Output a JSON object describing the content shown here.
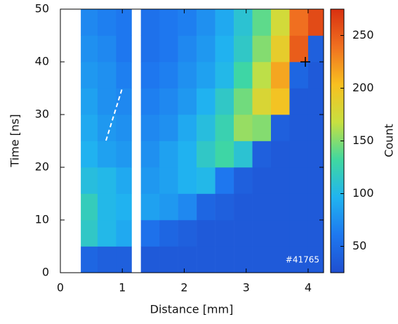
{
  "chart_data": {
    "type": "heatmap",
    "xlabel": "Distance [mm]",
    "ylabel": "Time [ns]",
    "colorbar_label": "Count",
    "annotation": "#41765",
    "x_edges": [
      0.33,
      0.6,
      0.9,
      1.15,
      1.3,
      1.6,
      1.9,
      2.2,
      2.5,
      2.8,
      3.1,
      3.4,
      3.7,
      4.0,
      4.25
    ],
    "y_edges": [
      0,
      5,
      10,
      15,
      20,
      25,
      30,
      35,
      40,
      45,
      50
    ],
    "values": [
      [
        45,
        40,
        40,
        null,
        35,
        35,
        35,
        35,
        35,
        35,
        35,
        35,
        35,
        35
      ],
      [
        115,
        100,
        90,
        null,
        55,
        45,
        40,
        35,
        35,
        35,
        35,
        35,
        35,
        35
      ],
      [
        120,
        100,
        95,
        null,
        85,
        80,
        70,
        45,
        40,
        35,
        35,
        35,
        35,
        35
      ],
      [
        105,
        100,
        90,
        null,
        80,
        85,
        95,
        100,
        60,
        40,
        35,
        35,
        35,
        35
      ],
      [
        95,
        85,
        80,
        null,
        75,
        85,
        95,
        115,
        130,
        110,
        40,
        35,
        35,
        35
      ],
      [
        90,
        80,
        75,
        null,
        70,
        75,
        90,
        105,
        125,
        155,
        150,
        40,
        35,
        35
      ],
      [
        85,
        75,
        70,
        null,
        65,
        70,
        80,
        95,
        115,
        145,
        180,
        200,
        35,
        35
      ],
      [
        80,
        75,
        65,
        null,
        60,
        65,
        75,
        85,
        100,
        130,
        165,
        215,
        45,
        35
      ],
      [
        75,
        70,
        60,
        null,
        55,
        60,
        70,
        80,
        95,
        115,
        150,
        190,
        250,
        40
      ],
      [
        70,
        65,
        60,
        null,
        55,
        60,
        65,
        75,
        90,
        110,
        140,
        175,
        240,
        260
      ]
    ],
    "xlim": [
      0,
      4.25
    ],
    "xticks": [
      0,
      1,
      2,
      3,
      4
    ],
    "ylim": [
      0,
      50
    ],
    "yticks": [
      0,
      10,
      20,
      30,
      40,
      50
    ],
    "zlim": [
      25,
      275
    ],
    "zticks": [
      50,
      100,
      150,
      200,
      250
    ],
    "colormap": [
      "#1f4fd0",
      "#1e78f0",
      "#20b4f0",
      "#40d8a0",
      "#c8e040",
      "#f8c020",
      "#f07020",
      "#d83010"
    ]
  }
}
